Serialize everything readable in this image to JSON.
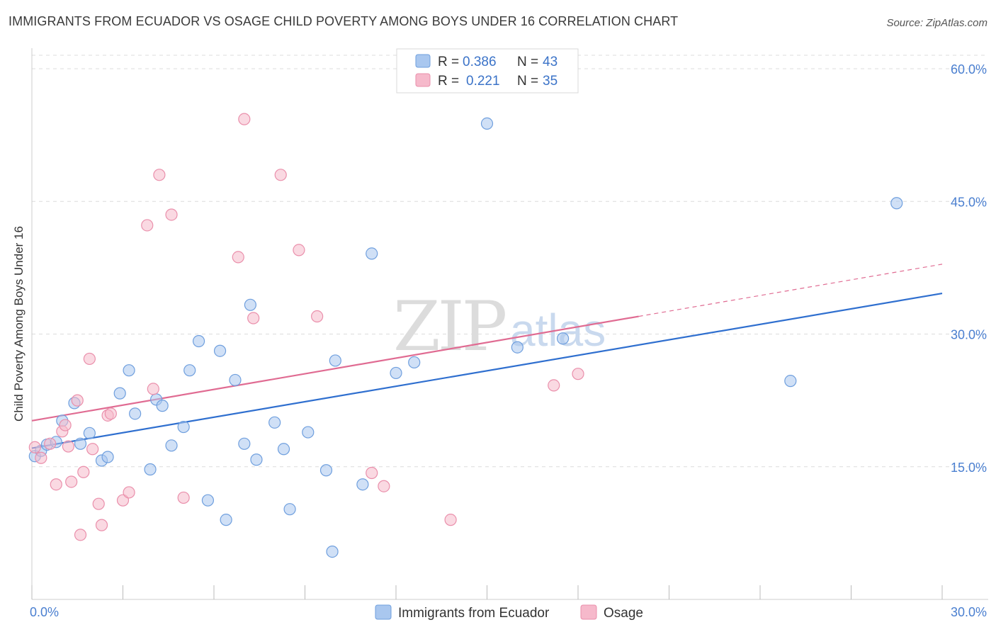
{
  "header": {
    "title": "IMMIGRANTS FROM ECUADOR VS OSAGE CHILD POVERTY AMONG BOYS UNDER 16 CORRELATION CHART",
    "source": "Source: ZipAtlas.com"
  },
  "watermark": {
    "zip": "ZIP",
    "atlas": "atlas"
  },
  "colors": {
    "blue_fill": "#a9c7ef",
    "blue_stroke": "#6f9fde",
    "blue_line": "#2f6fcf",
    "pink_fill": "#f6b9cb",
    "pink_stroke": "#ea8fab",
    "pink_line": "#e06b92",
    "tick_text": "#4a7fd0",
    "grid": "#dcdcdc"
  },
  "legend_top": {
    "r_label": "R =",
    "n_label": "N =",
    "series": [
      {
        "r": "0.386",
        "n": "43"
      },
      {
        "r": "0.221",
        "n": "35"
      }
    ]
  },
  "chart_data": {
    "type": "scatter",
    "title": "IMMIGRANTS FROM ECUADOR VS OSAGE CHILD POVERTY AMONG BOYS UNDER 16 CORRELATION CHART",
    "xlabel": "",
    "ylabel": "Child Poverty Among Boys Under 16",
    "xlim": [
      0,
      30
    ],
    "ylim": [
      0,
      60
    ],
    "x_tick_labels": [
      "0.0%",
      "30.0%"
    ],
    "y_ticks": [
      15,
      30,
      45,
      60
    ],
    "y_tick_labels": [
      "15.0%",
      "30.0%",
      "45.0%",
      "60.0%"
    ],
    "grid": true,
    "legend_position": "bottom",
    "series": [
      {
        "name": "Immigrants from Ecuador",
        "r": 0.386,
        "n": 43,
        "points": [
          [
            0.1,
            16.2
          ],
          [
            0.3,
            16.8
          ],
          [
            0.5,
            17.5
          ],
          [
            0.8,
            17.8
          ],
          [
            1.0,
            20.2
          ],
          [
            1.4,
            22.2
          ],
          [
            1.6,
            17.6
          ],
          [
            1.9,
            18.8
          ],
          [
            2.3,
            15.7
          ],
          [
            2.5,
            16.1
          ],
          [
            2.9,
            23.3
          ],
          [
            3.2,
            25.9
          ],
          [
            3.4,
            21.0
          ],
          [
            3.9,
            14.7
          ],
          [
            4.1,
            22.6
          ],
          [
            4.3,
            21.9
          ],
          [
            4.6,
            17.4
          ],
          [
            5.0,
            19.5
          ],
          [
            5.2,
            25.9
          ],
          [
            5.5,
            29.2
          ],
          [
            5.8,
            11.2
          ],
          [
            6.2,
            28.1
          ],
          [
            6.4,
            9.0
          ],
          [
            6.7,
            24.8
          ],
          [
            7.0,
            17.6
          ],
          [
            7.2,
            33.3
          ],
          [
            7.4,
            15.8
          ],
          [
            8.0,
            20.0
          ],
          [
            8.3,
            17.0
          ],
          [
            8.5,
            10.2
          ],
          [
            9.1,
            18.9
          ],
          [
            9.7,
            14.6
          ],
          [
            9.9,
            5.4
          ],
          [
            10.0,
            27.0
          ],
          [
            10.9,
            13.0
          ],
          [
            11.2,
            39.1
          ],
          [
            12.0,
            25.6
          ],
          [
            12.6,
            26.8
          ],
          [
            15.0,
            53.8
          ],
          [
            16.0,
            28.5
          ],
          [
            17.5,
            29.5
          ],
          [
            25.0,
            24.7
          ],
          [
            28.5,
            44.8
          ]
        ],
        "trend": {
          "x0": 0,
          "y0": 17.1,
          "x1": 30,
          "y1": 34.6
        }
      },
      {
        "name": "Osage",
        "r": 0.221,
        "n": 35,
        "points": [
          [
            0.1,
            17.2
          ],
          [
            0.3,
            16.0
          ],
          [
            0.6,
            17.6
          ],
          [
            0.8,
            13.0
          ],
          [
            1.0,
            19.0
          ],
          [
            1.1,
            19.7
          ],
          [
            1.2,
            17.3
          ],
          [
            1.3,
            13.3
          ],
          [
            1.5,
            22.5
          ],
          [
            1.6,
            7.3
          ],
          [
            1.7,
            14.4
          ],
          [
            1.9,
            27.2
          ],
          [
            2.0,
            17.0
          ],
          [
            2.2,
            10.8
          ],
          [
            2.3,
            8.4
          ],
          [
            2.5,
            20.8
          ],
          [
            2.6,
            21.0
          ],
          [
            3.0,
            11.2
          ],
          [
            3.2,
            12.1
          ],
          [
            3.8,
            42.3
          ],
          [
            4.0,
            23.8
          ],
          [
            4.2,
            48.0
          ],
          [
            4.6,
            43.5
          ],
          [
            5.0,
            11.5
          ],
          [
            6.8,
            38.7
          ],
          [
            7.0,
            54.3
          ],
          [
            7.3,
            31.8
          ],
          [
            8.2,
            48.0
          ],
          [
            8.8,
            39.5
          ],
          [
            9.4,
            32.0
          ],
          [
            11.2,
            14.3
          ],
          [
            11.6,
            12.8
          ],
          [
            13.8,
            9.0
          ],
          [
            17.2,
            24.2
          ],
          [
            18.0,
            25.5
          ]
        ],
        "trend": {
          "x0": 0,
          "y0": 20.2,
          "x1": 20,
          "y1": 32.0
        },
        "trend_extension": {
          "x0": 20,
          "y0": 32.0,
          "x1": 30,
          "y1": 37.9
        }
      }
    ]
  }
}
